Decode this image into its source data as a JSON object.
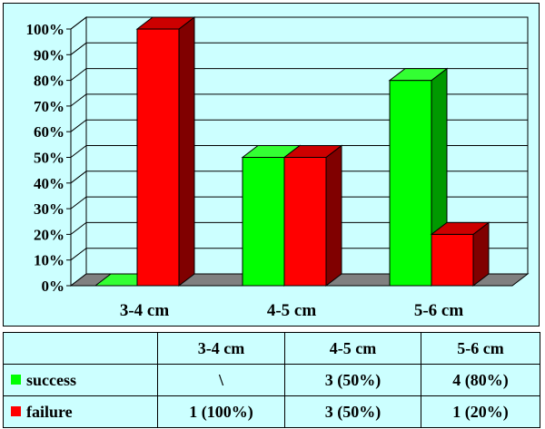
{
  "chart_data": {
    "type": "bar",
    "categories": [
      "3-4 cm",
      "4-5 cm",
      "5-6 cm"
    ],
    "y_tick_labels": [
      "0%",
      "10%",
      "20%",
      "30%",
      "40%",
      "50%",
      "60%",
      "70%",
      "80%",
      "90%",
      "100%"
    ],
    "ylim": [
      0,
      100
    ],
    "grid": true,
    "series": [
      {
        "name": "success",
        "values": [
          0,
          50,
          80
        ],
        "color": "#00ff00",
        "shade": "#009900",
        "top": "#33ff33"
      },
      {
        "name": "failure",
        "values": [
          100,
          50,
          20
        ],
        "color": "#ff0000",
        "shade": "#800000",
        "top": "#cc0000"
      }
    ]
  },
  "table": {
    "headers": [
      "",
      "3-4 cm",
      "4-5 cm",
      "5-6 cm"
    ],
    "rows": [
      {
        "label": "success",
        "color": "#00ff00",
        "cells": [
          "\\",
          "3 (50%)",
          "4 (80%)"
        ]
      },
      {
        "label": "failure",
        "color": "#ff0000",
        "cells": [
          "1 (100%)",
          "3 (50%)",
          "1 (20%)"
        ]
      }
    ]
  }
}
